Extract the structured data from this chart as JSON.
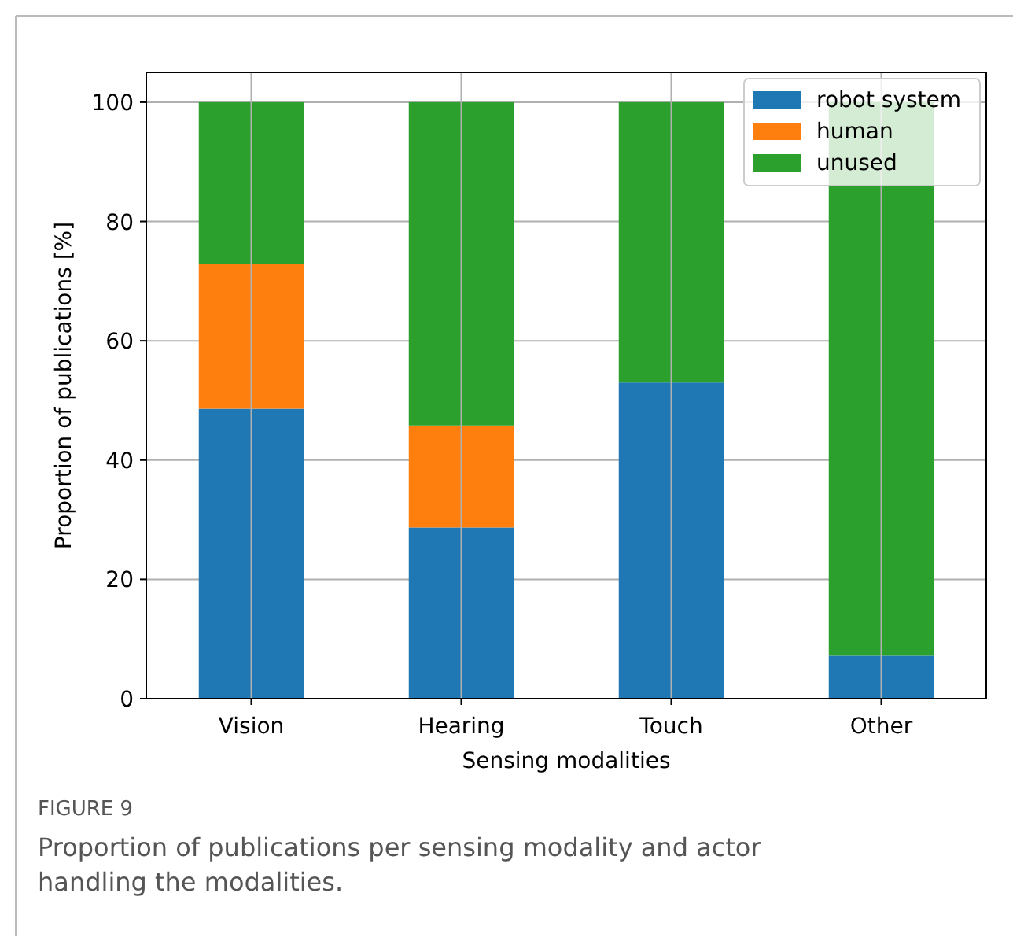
{
  "chart_data": {
    "type": "bar",
    "stacked": true,
    "xlabel": "Sensing modalities",
    "ylabel": "Proportion of publications [%]",
    "categories": [
      "Vision",
      "Hearing",
      "Touch",
      "Other"
    ],
    "series": [
      {
        "name": "robot system",
        "color": "#1f77b4",
        "values": [
          48.6,
          28.7,
          53.0,
          7.2
        ]
      },
      {
        "name": "human",
        "color": "#ff7f0e",
        "values": [
          24.3,
          17.1,
          0,
          0
        ]
      },
      {
        "name": "unused",
        "color": "#2ca02c",
        "values": [
          27.1,
          54.2,
          47.0,
          92.8
        ]
      }
    ],
    "ylim": [
      0,
      105
    ],
    "yticks": [
      0,
      20,
      40,
      60,
      80,
      100
    ],
    "grid": true,
    "legend": "top right",
    "annotations": [
      "FIGURE 9",
      "Proportion of publications per sensing modality and actor handling the modalities."
    ]
  }
}
